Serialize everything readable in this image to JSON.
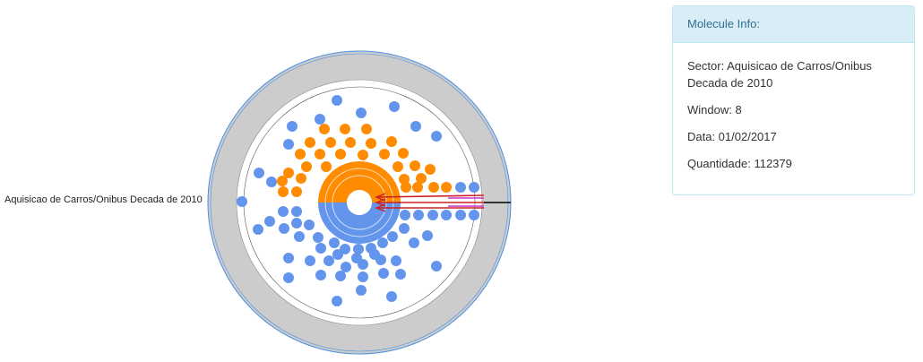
{
  "sector_label": "Aquisicao de Carros/Onibus Decada de 2010",
  "info_panel": {
    "title": "Molecule Info:",
    "sector": "Sector: Aquisicao de Carros/Onibus Decada de 2010",
    "window": "Window: 8",
    "data": "Data: 01/02/2017",
    "quantidade": "Quantidade: 112379"
  },
  "colors": {
    "outer_ring": "#cccccc",
    "outer_ring_border": "#4a90e2",
    "orange": "#ff8c00",
    "blue": "#6495ed",
    "pointer": "#000000",
    "arrows": "#cc2222",
    "magenta": "#cc33cc"
  }
}
